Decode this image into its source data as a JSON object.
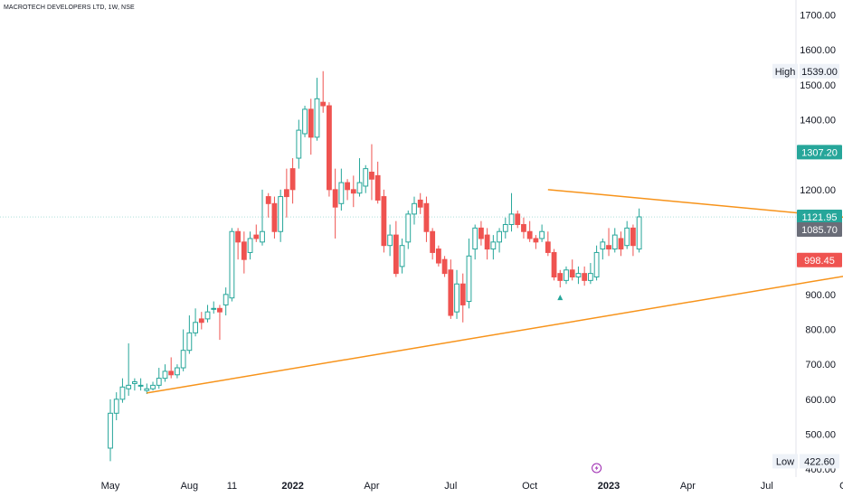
{
  "header": {
    "title": "MACROTECH DEVELOPERS LTD, 1W, NSE"
  },
  "chart_data": {
    "type": "candlestick",
    "ylim": [
      390,
      1730
    ],
    "y_ticks": [
      400,
      500,
      600,
      700,
      800,
      900,
      1000,
      1100,
      1200,
      1300,
      1400,
      1500,
      1600,
      1700
    ],
    "x_ticks": [
      {
        "label": "May",
        "idx": 0
      },
      {
        "label": "Aug",
        "idx": 13
      },
      {
        "label": "11",
        "idx": 20
      },
      {
        "label": "2022",
        "idx": 30,
        "bold": true
      },
      {
        "label": "Apr",
        "idx": 43
      },
      {
        "label": "Jul",
        "idx": 56
      },
      {
        "label": "Oct",
        "idx": 69
      },
      {
        "label": "2023",
        "idx": 82,
        "bold": true
      },
      {
        "label": "Apr",
        "idx": 95
      },
      {
        "label": "Jul",
        "idx": 108
      },
      {
        "label": "Oc",
        "idx": 121
      }
    ],
    "candles": [
      [
        460,
        560,
        422.6,
        600
      ],
      [
        560,
        600,
        540,
        620
      ],
      [
        600,
        635,
        590,
        660
      ],
      [
        630,
        640,
        610,
        760
      ],
      [
        645,
        650,
        625,
        660
      ],
      [
        640,
        640,
        625,
        660
      ],
      [
        625,
        630,
        615,
        645
      ],
      [
        630,
        640,
        625,
        650
      ],
      [
        640,
        660,
        630,
        690
      ],
      [
        660,
        680,
        650,
        700
      ],
      [
        680,
        670,
        660,
        720
      ],
      [
        670,
        690,
        660,
        700
      ],
      [
        690,
        740,
        680,
        800
      ],
      [
        740,
        790,
        730,
        840
      ],
      [
        790,
        820,
        780,
        860
      ],
      [
        830,
        820,
        800,
        850
      ],
      [
        830,
        850,
        820,
        870
      ],
      [
        860,
        860,
        845,
        880
      ],
      [
        860,
        850,
        770,
        870
      ],
      [
        870,
        900,
        840,
        920
      ],
      [
        890,
        1080,
        880,
        1090
      ],
      [
        1080,
        1050,
        1000,
        1090
      ],
      [
        1050,
        1000,
        960,
        1080
      ],
      [
        1020,
        1060,
        1000,
        1080
      ],
      [
        1070,
        1060,
        1050,
        1100
      ],
      [
        1050,
        1080,
        1040,
        1200
      ],
      [
        1180,
        1160,
        1120,
        1190
      ],
      [
        1160,
        1080,
        1060,
        1180
      ],
      [
        1080,
        1180,
        1050,
        1200
      ],
      [
        1200,
        1180,
        1120,
        1260
      ],
      [
        1260,
        1200,
        1160,
        1290
      ],
      [
        1290,
        1370,
        1260,
        1400
      ],
      [
        1360,
        1430,
        1350,
        1440
      ],
      [
        1430,
        1350,
        1300,
        1460
      ],
      [
        1350,
        1460,
        1340,
        1520
      ],
      [
        1450,
        1440,
        1420,
        1539
      ],
      [
        1440,
        1200,
        1180,
        1450
      ],
      [
        1200,
        1150,
        1060,
        1260
      ],
      [
        1160,
        1220,
        1140,
        1260
      ],
      [
        1220,
        1200,
        1170,
        1230
      ],
      [
        1200,
        1190,
        1150,
        1240
      ],
      [
        1190,
        1220,
        1180,
        1290
      ],
      [
        1210,
        1260,
        1190,
        1270
      ],
      [
        1250,
        1230,
        1170,
        1330
      ],
      [
        1240,
        1170,
        1160,
        1280
      ],
      [
        1180,
        1040,
        1020,
        1200
      ],
      [
        1040,
        1070,
        1010,
        1100
      ],
      [
        1070,
        960,
        950,
        1110
      ],
      [
        980,
        1040,
        960,
        1060
      ],
      [
        1050,
        1130,
        1030,
        1140
      ],
      [
        1130,
        1160,
        1100,
        1180
      ],
      [
        1170,
        1150,
        1130,
        1190
      ],
      [
        1160,
        1080,
        1050,
        1180
      ],
      [
        1080,
        1020,
        1000,
        1090
      ],
      [
        1030,
        990,
        980,
        1040
      ],
      [
        1000,
        960,
        950,
        1010
      ],
      [
        970,
        840,
        830,
        1000
      ],
      [
        850,
        930,
        830,
        970
      ],
      [
        930,
        870,
        820,
        960
      ],
      [
        880,
        1010,
        860,
        1060
      ],
      [
        1030,
        1090,
        1000,
        1100
      ],
      [
        1090,
        1060,
        1040,
        1110
      ],
      [
        1070,
        1030,
        1000,
        1090
      ],
      [
        1030,
        1050,
        1000,
        1070
      ],
      [
        1050,
        1080,
        1020,
        1090
      ],
      [
        1080,
        1100,
        1060,
        1120
      ],
      [
        1100,
        1130,
        1080,
        1190
      ],
      [
        1130,
        1100,
        1090,
        1140
      ],
      [
        1100,
        1080,
        1060,
        1120
      ],
      [
        1080,
        1060,
        1050,
        1110
      ],
      [
        1060,
        1050,
        1030,
        1070
      ],
      [
        1060,
        1080,
        1050,
        1100
      ],
      [
        1050,
        1020,
        1010,
        1080
      ],
      [
        1020,
        950,
        940,
        1030
      ],
      [
        960,
        940,
        920,
        970
      ],
      [
        940,
        970,
        930,
        980
      ],
      [
        970,
        950,
        940,
        1000
      ],
      [
        950,
        960,
        930,
        980
      ],
      [
        960,
        940,
        925,
        980
      ],
      [
        940,
        960,
        930,
        990
      ],
      [
        950,
        1020,
        940,
        1040
      ],
      [
        1030,
        1050,
        1000,
        1060
      ],
      [
        1040,
        1030,
        1010,
        1090
      ],
      [
        1030,
        1070,
        1020,
        1090
      ],
      [
        1060,
        1030,
        1010,
        1080
      ],
      [
        1040,
        1090,
        1030,
        1110
      ],
      [
        1090,
        1040,
        1010,
        1100
      ],
      [
        1030,
        1121.95,
        1020,
        1146
      ]
    ],
    "lines": [
      {
        "name": "upper-trendline",
        "from": [
          72,
          1200
        ],
        "to": [
          180,
          1025
        ]
      },
      {
        "name": "lower-trendline",
        "from": [
          6,
          618
        ],
        "to": [
          180,
          1125
        ]
      }
    ],
    "position": {
      "entry": 1085.7,
      "target": 1307.2,
      "stop": 998.45,
      "x_from": 134,
      "x_to": 164
    },
    "current_price": 1121.95,
    "price_tags": {
      "target": "1307.20",
      "current": "1121.95",
      "entry": "1085.70",
      "stop": "998.45"
    },
    "high": {
      "label": "High",
      "value": "1539.00"
    },
    "low": {
      "label": "Low",
      "value": "422.60"
    },
    "marker_idx": 74,
    "colors": {
      "up": "#26a69a",
      "down": "#ef5350",
      "trendline": "#f7931a",
      "profit_zone": "#dbf1ec",
      "loss_zone": "#fbdcdd",
      "target_tag": "#26a69a",
      "stop_tag": "#ef5350",
      "entry_tag": "#6a6d78",
      "current_tag": "#26a69a"
    }
  }
}
